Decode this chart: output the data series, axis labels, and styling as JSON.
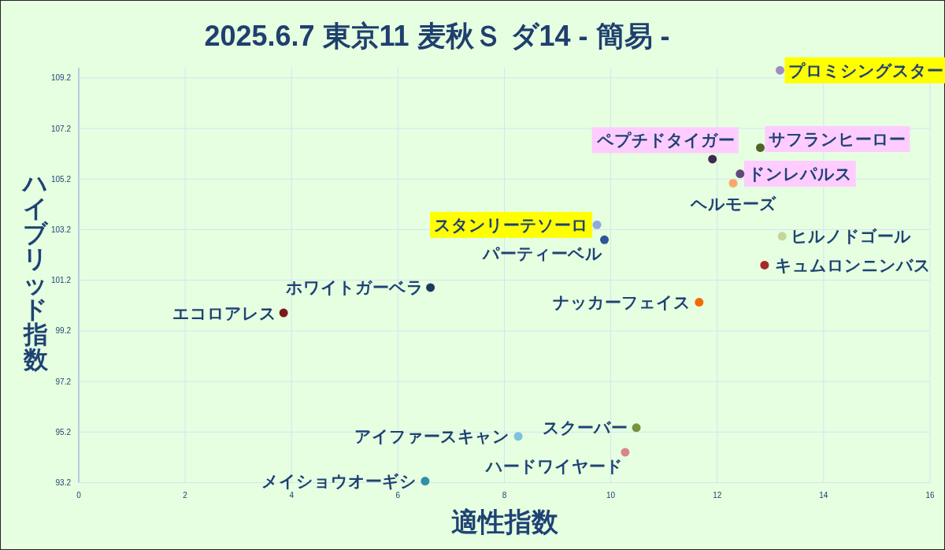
{
  "chart_data": {
    "type": "scatter",
    "title": "2025.6.7 東京11 麦秋Ｓ ダ14 - 簡易 -",
    "xlabel": "適性指数",
    "ylabel": "ハイブリッド指数",
    "xlim": [
      0,
      16
    ],
    "xticks": [
      0,
      2,
      4,
      6,
      8,
      10,
      12,
      14,
      16
    ],
    "ylim": [
      93.2,
      109.6
    ],
    "yticks": [
      93.2,
      95.2,
      97.2,
      99.2,
      101.2,
      103.2,
      105.2,
      107.2,
      109.2
    ],
    "grid": true,
    "marker": "circle",
    "series": [
      {
        "name": "プロミシングスター",
        "color": "#a08cc0",
        "x": [
          13.18
        ],
        "values": [
          109.5
        ]
      },
      {
        "name": "サフランヒーロー",
        "color": "#4f6228",
        "x": [
          12.81
        ],
        "values": [
          106.44
        ]
      },
      {
        "name": "ペプチドタイガー",
        "color": "#3f2a4f",
        "x": [
          11.91
        ],
        "values": [
          105.99
        ]
      },
      {
        "name": "ドンレパルス",
        "color": "#604a7b",
        "x": [
          12.43
        ],
        "values": [
          105.41
        ]
      },
      {
        "name": "ヘルモーズ",
        "color": "#f9a86a",
        "x": [
          12.3
        ],
        "values": [
          105.04
        ]
      },
      {
        "name": "スタンリーテソーロ",
        "color": "#8eaadc",
        "x": [
          9.74
        ],
        "values": [
          103.39
        ]
      },
      {
        "name": "パーティーベル",
        "color": "#2e5597",
        "x": [
          9.88
        ],
        "values": [
          102.8
        ]
      },
      {
        "name": "ヒルノドゴール",
        "color": "#c3d69b",
        "x": [
          13.22
        ],
        "values": [
          102.94
        ]
      },
      {
        "name": "キュムロンニンバス",
        "color": "#a52a2a",
        "x": [
          12.89
        ],
        "values": [
          101.8
        ]
      },
      {
        "name": "ナッカーフェイス",
        "color": "#f26b00",
        "x": [
          11.66
        ],
        "values": [
          100.33
        ]
      },
      {
        "name": "ホワイトガーベラ",
        "color": "#1f3a5f",
        "x": [
          6.61
        ],
        "values": [
          100.91
        ]
      },
      {
        "name": "エコロアレス",
        "color": "#7a1a1a",
        "x": [
          3.85
        ],
        "values": [
          99.91
        ]
      },
      {
        "name": "スクーバー",
        "color": "#77933c",
        "x": [
          10.48
        ],
        "values": [
          95.37
        ]
      },
      {
        "name": "アイファースキャン",
        "color": "#7ec0e0",
        "x": [
          8.26
        ],
        "values": [
          95.03
        ]
      },
      {
        "name": "ハードワイヤード",
        "color": "#d9868a",
        "x": [
          10.27
        ],
        "values": [
          94.4
        ]
      },
      {
        "name": "メイショウオーギシ",
        "color": "#2e8fa8",
        "x": [
          6.51
        ],
        "values": [
          93.26
        ]
      }
    ]
  }
}
